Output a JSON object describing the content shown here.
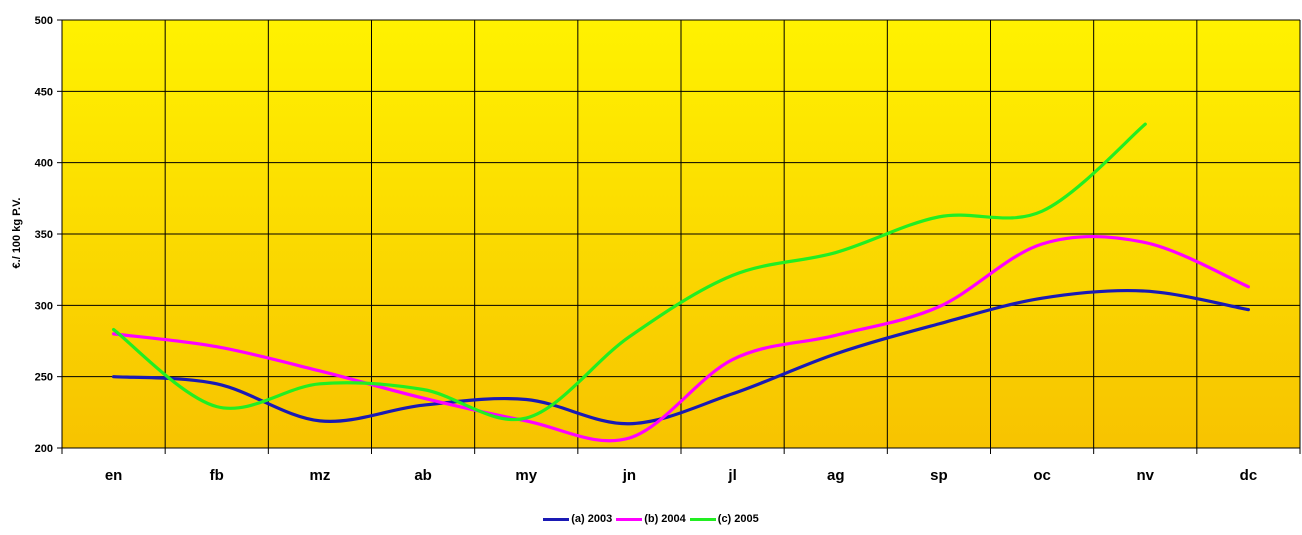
{
  "chart_data": {
    "type": "line",
    "title": "",
    "xlabel": "",
    "ylabel": "€./ 100 kg P.V.",
    "ylim": [
      200,
      500
    ],
    "yticks": [
      200,
      250,
      300,
      350,
      400,
      450,
      500
    ],
    "categories": [
      "en",
      "fb",
      "mz",
      "ab",
      "my",
      "jn",
      "jl",
      "ag",
      "sp",
      "oc",
      "nv",
      "dc"
    ],
    "grid": true,
    "smooth": true,
    "background": {
      "top": "#fff200",
      "bottom": "#f7c300"
    },
    "legend_position": "bottom",
    "series": [
      {
        "name": "(a) 2003",
        "color": "#1a1ab4",
        "values": [
          250,
          245,
          219,
          230,
          234,
          217,
          238,
          266,
          287,
          305,
          310,
          297
        ]
      },
      {
        "name": "(b) 2004",
        "color": "#ff00ff",
        "values": [
          280,
          271,
          254,
          235,
          219,
          207,
          262,
          279,
          299,
          343,
          344,
          313
        ]
      },
      {
        "name": "(c) 2005",
        "color": "#22ee22",
        "values": [
          283,
          229,
          245,
          241,
          221,
          278,
          321,
          337,
          362,
          366,
          427,
          null
        ]
      }
    ]
  }
}
